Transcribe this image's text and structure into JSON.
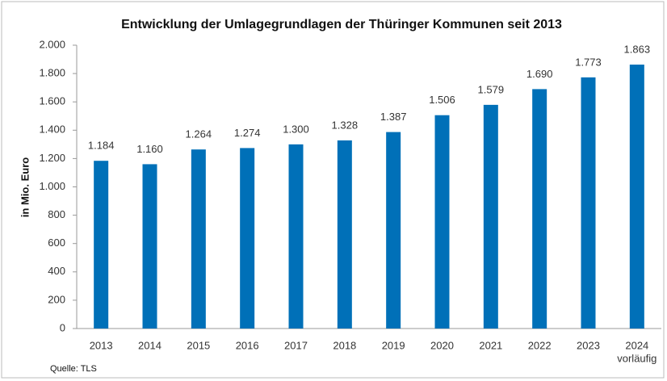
{
  "chart_data": {
    "type": "bar",
    "title": "Entwicklung der Umlagegrundlagen der Thüringer Kommunen seit 2013",
    "y_axis_label": "in Mio. Euro",
    "categories": [
      "2013",
      "2014",
      "2015",
      "2016",
      "2017",
      "2018",
      "2019",
      "2020",
      "2021",
      "2022",
      "2023",
      "2024"
    ],
    "category_note": "vorläufig",
    "values": [
      1184,
      1160,
      1264,
      1274,
      1300,
      1328,
      1387,
      1506,
      1579,
      1690,
      1773,
      1863
    ],
    "value_labels": [
      "1.184",
      "1.160",
      "1.264",
      "1.274",
      "1.300",
      "1.328",
      "1.387",
      "1.506",
      "1.579",
      "1.690",
      "1.773",
      "1.863"
    ],
    "color": "#0070b8",
    "ylim": [
      0,
      2000
    ],
    "yticks": [
      0,
      200,
      400,
      600,
      800,
      {
        "value": 1000,
        "label": "1.000"
      },
      {
        "value": 1200,
        "label": "1.200"
      },
      {
        "value": 1400,
        "label": "1.400"
      },
      {
        "value": 1600,
        "label": "1.600"
      },
      {
        "value": 1800,
        "label": "1.800"
      },
      {
        "value": 2000,
        "label": "2.000"
      }
    ],
    "grid": false,
    "source": "Quelle: TLS"
  }
}
